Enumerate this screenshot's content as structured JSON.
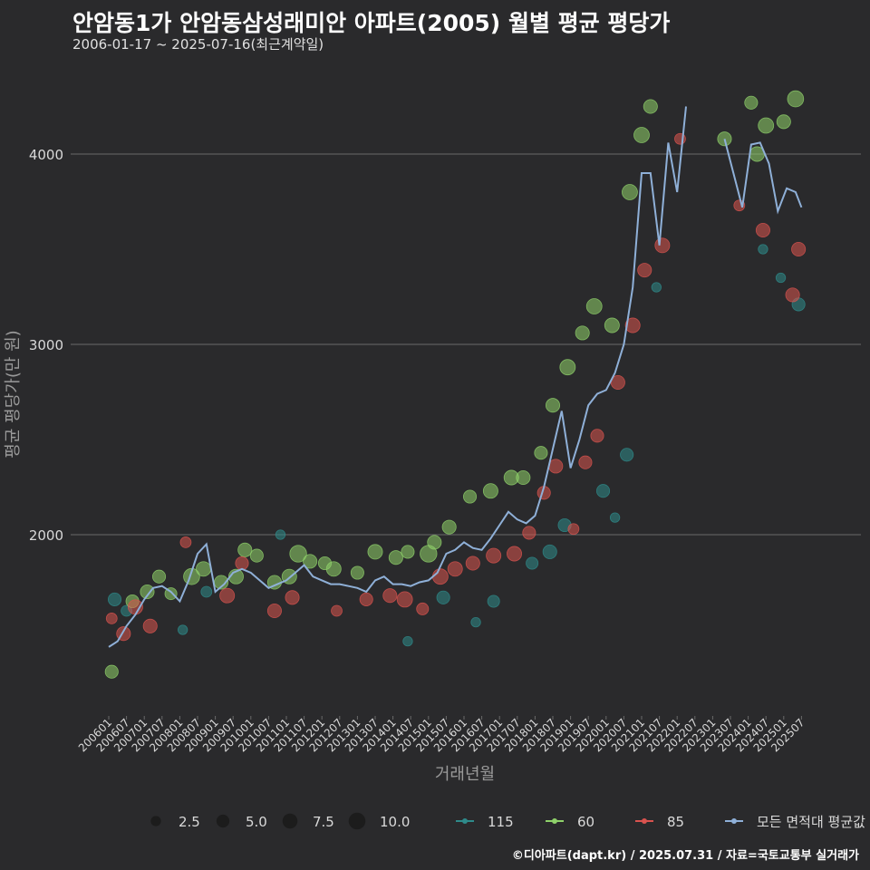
{
  "chart_data": {
    "type": "scatter",
    "title": "안암동1가 안암동삼성래미안 아파트(2005) 월별 평균 평당가",
    "subtitle": "2006-01-17 ~ 2025-07-16(최근계약일)",
    "xlabel": "거래년월",
    "ylabel": "평균 평당가(만 원)",
    "caption": "©디아파트(dapt.kr) / 2025.07.31 / 자료=국토교통부 실거래가",
    "y_ticks": [
      2000,
      3000,
      4000
    ],
    "ylim": [
      1000,
      4400
    ],
    "x_tick_labels": [
      "200601",
      "200607",
      "200701",
      "200707",
      "200801",
      "200807",
      "200901",
      "200907",
      "201001",
      "201007",
      "201101",
      "201107",
      "201201",
      "201207",
      "201301",
      "201307",
      "201401",
      "201407",
      "201501",
      "201507",
      "201601",
      "201607",
      "201701",
      "201707",
      "201801",
      "201807",
      "201901",
      "201907",
      "202001",
      "202007",
      "202101",
      "202107",
      "202201",
      "202207",
      "202301",
      "202307",
      "202401",
      "202407",
      "202501",
      "202507"
    ],
    "size_legend": {
      "values": [
        2.5,
        5.0,
        7.5,
        10.0
      ],
      "labels": [
        "2.5",
        "5.0",
        "7.5",
        "10.0"
      ]
    },
    "series_legend": [
      "115",
      "60",
      "85",
      "모든 면적대 평균값"
    ],
    "colors": {
      "115": "#2e8b8b",
      "60": "#8fd16a",
      "85": "#d9534f",
      "avg": "#8fb0d8",
      "grid": "#6a6a6a",
      "text": "#d9d9d9"
    },
    "average_line": {
      "name": "모든 면적대 평균값",
      "x": [
        "2006-01",
        "2006-04",
        "2006-07",
        "2006-10",
        "2007-01",
        "2007-04",
        "2007-07",
        "2007-10",
        "2008-01",
        "2008-04",
        "2008-07",
        "2008-10",
        "2009-01",
        "2009-04",
        "2009-07",
        "2009-10",
        "2010-01",
        "2010-04",
        "2010-07",
        "2010-10",
        "2011-01",
        "2011-04",
        "2011-07",
        "2011-10",
        "2012-01",
        "2012-04",
        "2012-07",
        "2012-10",
        "2013-01",
        "2013-04",
        "2013-07",
        "2013-10",
        "2014-01",
        "2014-04",
        "2014-07",
        "2014-10",
        "2015-01",
        "2015-04",
        "2015-07",
        "2015-10",
        "2016-01",
        "2016-04",
        "2016-07",
        "2016-10",
        "2017-01",
        "2017-04",
        "2017-07",
        "2017-10",
        "2018-01",
        "2018-04",
        "2018-07",
        "2018-10",
        "2019-01",
        "2019-04",
        "2019-07",
        "2019-10",
        "2020-01",
        "2020-04",
        "2020-07",
        "2020-10",
        "2021-01",
        "2021-04",
        "2021-07",
        "2021-10",
        "2022-01",
        "2022-04"
      ],
      "y": [
        1410,
        1440,
        1520,
        1580,
        1660,
        1720,
        1730,
        1700,
        1650,
        1760,
        1900,
        1950,
        1700,
        1740,
        1800,
        1820,
        1800,
        1760,
        1720,
        1740,
        1760,
        1800,
        1840,
        1780,
        1760,
        1740,
        1740,
        1730,
        1720,
        1700,
        1760,
        1780,
        1740,
        1740,
        1730,
        1750,
        1760,
        1800,
        1900,
        1920,
        1960,
        1930,
        1920,
        1980,
        2050,
        2120,
        2080,
        2060,
        2100,
        2250,
        2450,
        2650,
        2350,
        2500,
        2680,
        2740,
        2760,
        2850,
        3000,
        3300,
        3900,
        3900,
        3520,
        4060,
        3800,
        4250
      ],
      "x2": [
        "2023-05",
        "2023-08",
        "2023-11",
        "2024-02",
        "2024-05",
        "2024-08",
        "2024-11",
        "2025-02",
        "2025-05",
        "2025-07"
      ],
      "y2": [
        4080,
        3900,
        3720,
        4050,
        4060,
        3950,
        3700,
        3820,
        3800,
        3720
      ]
    },
    "series": [
      {
        "name": "115",
        "points": [
          [
            "2006-03",
            1660,
            5
          ],
          [
            "2006-07",
            1600,
            3
          ],
          [
            "2008-02",
            1500,
            2
          ],
          [
            "2008-10",
            1700,
            3
          ],
          [
            "2010-11",
            2000,
            2
          ],
          [
            "2014-06",
            1440,
            2
          ],
          [
            "2015-06",
            1670,
            5
          ],
          [
            "2016-05",
            1540,
            2
          ],
          [
            "2016-11",
            1650,
            4
          ],
          [
            "2017-12",
            1850,
            4
          ],
          [
            "2018-06",
            1910,
            6
          ],
          [
            "2018-11",
            2050,
            5
          ],
          [
            "2019-12",
            2230,
            5
          ],
          [
            "2020-04",
            2090,
            2
          ],
          [
            "2020-08",
            2420,
            5
          ],
          [
            "2021-06",
            3300,
            2
          ],
          [
            "2024-06",
            3500,
            2
          ],
          [
            "2024-12",
            3350,
            2
          ],
          [
            "2025-06",
            3210,
            5
          ]
        ]
      },
      {
        "name": "60",
        "points": [
          [
            "2006-02",
            1280,
            5
          ],
          [
            "2006-09",
            1650,
            5
          ],
          [
            "2007-02",
            1700,
            6
          ],
          [
            "2007-06",
            1780,
            5
          ],
          [
            "2007-10",
            1690,
            4
          ],
          [
            "2008-05",
            1780,
            9
          ],
          [
            "2008-09",
            1820,
            7
          ],
          [
            "2009-03",
            1750,
            6
          ],
          [
            "2009-08",
            1780,
            7
          ],
          [
            "2009-11",
            1920,
            6
          ],
          [
            "2010-03",
            1890,
            5
          ],
          [
            "2010-09",
            1750,
            6
          ],
          [
            "2011-02",
            1780,
            7
          ],
          [
            "2011-05",
            1900,
            10
          ],
          [
            "2011-09",
            1860,
            6
          ],
          [
            "2012-02",
            1850,
            5
          ],
          [
            "2012-05",
            1820,
            7
          ],
          [
            "2013-01",
            1800,
            5
          ],
          [
            "2013-07",
            1910,
            7
          ],
          [
            "2014-02",
            1880,
            6
          ],
          [
            "2014-06",
            1910,
            5
          ],
          [
            "2015-01",
            1900,
            10
          ],
          [
            "2015-03",
            1960,
            6
          ],
          [
            "2015-08",
            2040,
            6
          ],
          [
            "2016-03",
            2200,
            5
          ],
          [
            "2016-10",
            2230,
            7
          ],
          [
            "2017-05",
            2300,
            7
          ],
          [
            "2017-09",
            2300,
            6
          ],
          [
            "2018-03",
            2430,
            5
          ],
          [
            "2018-07",
            2680,
            6
          ],
          [
            "2018-12",
            2880,
            8
          ],
          [
            "2019-05",
            3060,
            6
          ],
          [
            "2019-09",
            3200,
            8
          ],
          [
            "2020-03",
            3100,
            7
          ],
          [
            "2020-09",
            3800,
            8
          ],
          [
            "2021-01",
            4100,
            8
          ],
          [
            "2021-04",
            4250,
            6
          ],
          [
            "2023-05",
            4080,
            6
          ],
          [
            "2024-02",
            4270,
            5
          ],
          [
            "2024-04",
            4000,
            7
          ],
          [
            "2024-07",
            4150,
            8
          ],
          [
            "2025-01",
            4170,
            6
          ],
          [
            "2025-05",
            4290,
            9
          ]
        ]
      },
      {
        "name": "85",
        "points": [
          [
            "2006-02",
            1560,
            3
          ],
          [
            "2006-06",
            1480,
            6
          ],
          [
            "2006-10",
            1620,
            7
          ],
          [
            "2007-03",
            1520,
            6
          ],
          [
            "2008-03",
            1960,
            3
          ],
          [
            "2009-05",
            1680,
            7
          ],
          [
            "2009-10",
            1850,
            5
          ],
          [
            "2010-09",
            1600,
            6
          ],
          [
            "2011-03",
            1670,
            6
          ],
          [
            "2012-06",
            1600,
            3
          ],
          [
            "2013-04",
            1660,
            5
          ],
          [
            "2013-12",
            1680,
            6
          ],
          [
            "2014-05",
            1660,
            8
          ],
          [
            "2014-11",
            1610,
            4
          ],
          [
            "2015-05",
            1780,
            8
          ],
          [
            "2015-10",
            1820,
            7
          ],
          [
            "2016-04",
            1850,
            6
          ],
          [
            "2016-11",
            1890,
            7
          ],
          [
            "2017-06",
            1900,
            7
          ],
          [
            "2017-11",
            2010,
            5
          ],
          [
            "2018-04",
            2220,
            5
          ],
          [
            "2018-08",
            2360,
            6
          ],
          [
            "2019-02",
            2030,
            3
          ],
          [
            "2019-06",
            2380,
            5
          ],
          [
            "2019-10",
            2520,
            5
          ],
          [
            "2020-05",
            2800,
            6
          ],
          [
            "2020-10",
            3100,
            7
          ],
          [
            "2021-02",
            3390,
            6
          ],
          [
            "2021-08",
            3520,
            7
          ],
          [
            "2022-02",
            4080,
            3
          ],
          [
            "2023-10",
            3730,
            3
          ],
          [
            "2024-06",
            3600,
            6
          ],
          [
            "2025-04",
            3260,
            6
          ],
          [
            "2025-06",
            3500,
            6
          ]
        ]
      }
    ]
  }
}
